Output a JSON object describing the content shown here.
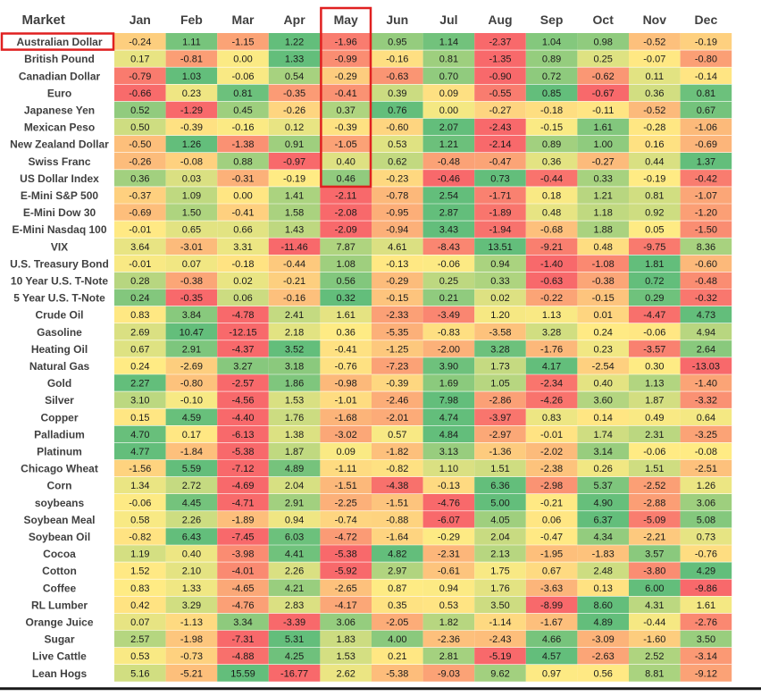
{
  "chart_data": {
    "type": "heatmap",
    "header_label": "Market",
    "months": [
      "Jan",
      "Feb",
      "Mar",
      "Apr",
      "May",
      "Jun",
      "Jul",
      "Aug",
      "Sep",
      "Oct",
      "Nov",
      "Dec"
    ],
    "highlight": {
      "row": "Australian Dollar",
      "column": "May",
      "color": "#e02020"
    },
    "color_scale": {
      "negative": "#f8696b",
      "neutral": "#ffeb84",
      "positive": "#63be7b"
    },
    "rows": [
      {
        "market": "Australian Dollar",
        "values": [
          -0.24,
          1.11,
          -1.15,
          1.22,
          -1.96,
          0.95,
          1.14,
          -2.37,
          1.04,
          0.98,
          -0.52,
          -0.19
        ]
      },
      {
        "market": "British Pound",
        "values": [
          0.17,
          -0.81,
          0.0,
          1.33,
          -0.99,
          -0.16,
          0.81,
          -1.35,
          0.89,
          0.25,
          -0.07,
          -0.8
        ]
      },
      {
        "market": "Canadian Dollar",
        "values": [
          -0.79,
          1.03,
          -0.06,
          0.54,
          -0.29,
          -0.63,
          0.7,
          -0.9,
          0.72,
          -0.62,
          0.11,
          -0.14
        ]
      },
      {
        "market": "Euro",
        "values": [
          -0.66,
          0.23,
          0.81,
          -0.35,
          -0.41,
          0.39,
          0.09,
          -0.55,
          0.85,
          -0.67,
          0.36,
          0.81
        ]
      },
      {
        "market": "Japanese Yen",
        "values": [
          0.52,
          -1.29,
          0.45,
          -0.26,
          0.37,
          0.76,
          0.0,
          -0.27,
          -0.18,
          -0.11,
          -0.52,
          0.67
        ]
      },
      {
        "market": "Mexican Peso",
        "values": [
          0.5,
          -0.39,
          -0.16,
          0.12,
          -0.39,
          -0.6,
          2.07,
          -2.43,
          -0.15,
          1.61,
          -0.28,
          -1.06
        ]
      },
      {
        "market": "New Zealand Dollar",
        "values": [
          -0.5,
          1.26,
          -1.38,
          0.91,
          -1.05,
          0.53,
          1.21,
          -2.14,
          0.89,
          1.0,
          0.16,
          -0.69
        ]
      },
      {
        "market": "Swiss Franc",
        "values": [
          -0.26,
          -0.08,
          0.88,
          -0.97,
          0.4,
          0.62,
          -0.48,
          -0.47,
          0.36,
          -0.27,
          0.44,
          1.37
        ]
      },
      {
        "market": "US Dollar Index",
        "values": [
          0.36,
          0.03,
          -0.31,
          -0.19,
          0.46,
          -0.23,
          -0.46,
          0.73,
          -0.44,
          0.33,
          -0.19,
          -0.42
        ]
      },
      {
        "market": "E-Mini S&P 500",
        "values": [
          -0.37,
          1.09,
          0.0,
          1.41,
          -2.11,
          -0.78,
          2.54,
          -1.71,
          0.18,
          1.21,
          0.81,
          -1.07
        ]
      },
      {
        "market": "E-Mini Dow 30",
        "values": [
          -0.69,
          1.5,
          -0.41,
          1.58,
          -2.08,
          -0.95,
          2.87,
          -1.89,
          0.48,
          1.18,
          0.92,
          -1.2
        ]
      },
      {
        "market": "E-Mini Nasdaq 100",
        "values": [
          -0.01,
          0.65,
          0.66,
          1.43,
          -2.09,
          -0.94,
          3.43,
          -1.94,
          -0.68,
          1.88,
          0.05,
          -1.5
        ]
      },
      {
        "market": "VIX",
        "values": [
          3.64,
          -3.01,
          3.31,
          -11.46,
          7.87,
          4.61,
          -8.43,
          13.51,
          -9.21,
          0.48,
          -9.75,
          8.36
        ]
      },
      {
        "market": "U.S. Treasury Bond",
        "values": [
          -0.01,
          0.07,
          -0.18,
          -0.44,
          1.08,
          -0.13,
          -0.06,
          0.94,
          -1.4,
          -1.08,
          1.81,
          -0.6
        ]
      },
      {
        "market": "10 Year U.S. T-Note",
        "values": [
          0.28,
          -0.38,
          0.02,
          -0.21,
          0.56,
          -0.29,
          0.25,
          0.33,
          -0.63,
          -0.38,
          0.72,
          -0.48
        ]
      },
      {
        "market": "5 Year U.S. T-Note",
        "values": [
          0.24,
          -0.35,
          0.06,
          -0.16,
          0.32,
          -0.15,
          0.21,
          0.02,
          -0.22,
          -0.15,
          0.29,
          -0.32
        ]
      },
      {
        "market": "Crude Oil",
        "values": [
          0.83,
          3.84,
          -4.78,
          2.41,
          1.61,
          -2.33,
          -3.49,
          1.2,
          1.13,
          0.01,
          -4.47,
          4.73
        ]
      },
      {
        "market": "Gasoline",
        "values": [
          2.69,
          10.47,
          -12.15,
          2.18,
          0.36,
          -5.35,
          -0.83,
          -3.58,
          3.28,
          0.24,
          -0.06,
          4.94
        ]
      },
      {
        "market": "Heating Oil",
        "values": [
          0.67,
          2.91,
          -4.37,
          3.52,
          -0.41,
          -1.25,
          -2.0,
          3.28,
          -1.76,
          0.23,
          -3.57,
          2.64
        ]
      },
      {
        "market": "Natural Gas",
        "values": [
          0.24,
          -2.69,
          3.27,
          3.18,
          -0.76,
          -7.23,
          3.9,
          1.73,
          4.17,
          -2.54,
          0.3,
          -13.03
        ]
      },
      {
        "market": "Gold",
        "values": [
          2.27,
          -0.8,
          -2.57,
          1.86,
          -0.98,
          -0.39,
          1.69,
          1.05,
          -2.34,
          0.4,
          1.13,
          -1.4
        ]
      },
      {
        "market": "Silver",
        "values": [
          3.1,
          -0.1,
          -4.56,
          1.53,
          -1.01,
          -2.46,
          7.98,
          -2.86,
          -4.26,
          3.6,
          1.87,
          -3.32
        ]
      },
      {
        "market": "Copper",
        "values": [
          0.15,
          4.59,
          -4.4,
          1.76,
          -1.68,
          -2.01,
          4.74,
          -3.97,
          0.83,
          0.14,
          0.49,
          0.64
        ]
      },
      {
        "market": "Palladium",
        "values": [
          4.7,
          0.17,
          -6.13,
          1.38,
          -3.02,
          0.57,
          4.84,
          -2.97,
          -0.01,
          1.74,
          2.31,
          -3.25
        ]
      },
      {
        "market": "Platinum",
        "values": [
          4.77,
          -1.84,
          -5.38,
          1.87,
          0.09,
          -1.82,
          3.13,
          -1.36,
          -2.02,
          3.14,
          -0.06,
          -0.08
        ]
      },
      {
        "market": "Chicago Wheat",
        "values": [
          -1.56,
          5.59,
          -7.12,
          4.89,
          -1.11,
          -0.82,
          1.1,
          1.51,
          -2.38,
          0.26,
          1.51,
          -2.51
        ]
      },
      {
        "market": "Corn",
        "values": [
          1.34,
          2.72,
          -4.69,
          2.04,
          -1.51,
          -4.38,
          -0.13,
          6.36,
          -2.98,
          5.37,
          -2.52,
          1.26
        ]
      },
      {
        "market": "soybeans",
        "values": [
          -0.06,
          4.45,
          -4.71,
          2.91,
          -2.25,
          -1.51,
          -4.76,
          5.0,
          -0.21,
          4.9,
          -2.88,
          3.06
        ]
      },
      {
        "market": "Soybean Meal",
        "values": [
          0.58,
          2.26,
          -1.89,
          0.94,
          -0.74,
          -0.88,
          -6.07,
          4.05,
          0.06,
          6.37,
          -5.09,
          5.08
        ]
      },
      {
        "market": "Soybean Oil",
        "values": [
          -0.82,
          6.43,
          -7.45,
          6.03,
          -4.72,
          -1.64,
          -0.29,
          2.04,
          -0.47,
          4.34,
          -2.21,
          0.73
        ]
      },
      {
        "market": "Cocoa",
        "values": [
          1.19,
          0.4,
          -3.98,
          4.41,
          -5.38,
          4.82,
          -2.31,
          2.13,
          -1.95,
          -1.83,
          3.57,
          -0.76
        ]
      },
      {
        "market": "Cotton",
        "values": [
          1.52,
          2.1,
          -4.01,
          2.26,
          -5.92,
          2.97,
          -0.61,
          1.75,
          0.67,
          2.48,
          -3.8,
          4.29
        ]
      },
      {
        "market": "Coffee",
        "values": [
          0.83,
          1.33,
          -4.65,
          4.21,
          -2.65,
          0.87,
          0.94,
          1.76,
          -3.63,
          0.13,
          6.0,
          -9.86
        ]
      },
      {
        "market": "RL Lumber",
        "values": [
          0.42,
          3.29,
          -4.76,
          2.83,
          -4.17,
          0.35,
          0.53,
          3.5,
          -8.99,
          8.6,
          4.31,
          1.61
        ]
      },
      {
        "market": "Orange Juice",
        "values": [
          0.07,
          -1.13,
          3.34,
          -3.39,
          3.06,
          -2.05,
          1.82,
          -1.14,
          -1.67,
          4.89,
          -0.44,
          -2.76
        ]
      },
      {
        "market": "Sugar",
        "values": [
          2.57,
          -1.98,
          -7.31,
          5.31,
          1.83,
          4.0,
          -2.36,
          -2.43,
          4.66,
          -3.09,
          -1.6,
          3.5
        ]
      },
      {
        "market": "Live Cattle",
        "values": [
          0.53,
          -0.73,
          -4.88,
          4.25,
          1.53,
          0.21,
          2.81,
          -5.19,
          4.57,
          -2.63,
          2.52,
          -3.14
        ]
      },
      {
        "market": "Lean Hogs",
        "values": [
          5.16,
          -5.21,
          15.59,
          -16.77,
          2.62,
          -5.38,
          -9.03,
          9.62,
          0.97,
          0.56,
          8.81,
          -9.12
        ]
      }
    ]
  }
}
